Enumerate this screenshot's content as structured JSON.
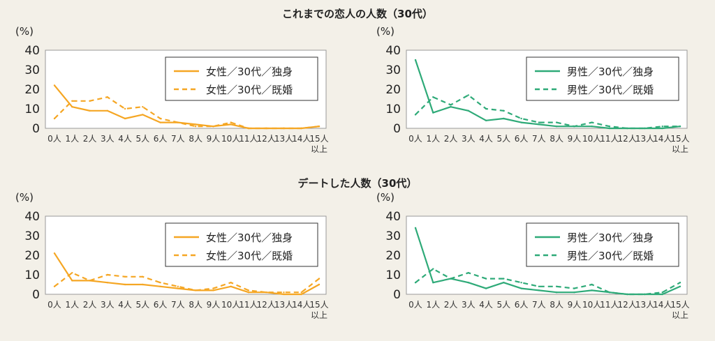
{
  "titles": {
    "top": "これまでの恋人の人数（30代）",
    "bottom": "デートした人数（30代）"
  },
  "chart_data": [
    {
      "type": "line",
      "section": "これまでの恋人の人数（30代）",
      "ylabel": "(%)",
      "ylim": [
        0,
        40
      ],
      "yticks": [
        0,
        10,
        20,
        30,
        40
      ],
      "categories": [
        "0人",
        "1人",
        "2人",
        "3人",
        "4人",
        "5人",
        "6人",
        "7人",
        "8人",
        "9人",
        "10人",
        "11人",
        "12人",
        "13人",
        "14人",
        "15人以上"
      ],
      "legend_position": "top-right",
      "series": [
        {
          "name": "女性／30代／独身",
          "color": "#f5a623",
          "dash": false,
          "values": [
            22,
            11,
            9,
            9,
            5,
            7,
            3,
            3,
            2,
            1,
            2,
            0,
            0,
            0,
            0,
            1
          ]
        },
        {
          "name": "女性／30代／既婚",
          "color": "#f5a623",
          "dash": true,
          "values": [
            5,
            14,
            14,
            16,
            10,
            11,
            5,
            3,
            1,
            1,
            3,
            0,
            0,
            0,
            0,
            1
          ]
        }
      ]
    },
    {
      "type": "line",
      "section": "これまでの恋人の人数（30代）",
      "ylabel": "(%)",
      "ylim": [
        0,
        40
      ],
      "yticks": [
        0,
        10,
        20,
        30,
        40
      ],
      "categories": [
        "0人",
        "1人",
        "2人",
        "3人",
        "4人",
        "5人",
        "6人",
        "7人",
        "8人",
        "9人",
        "10人",
        "11人",
        "12人",
        "13人",
        "14人",
        "15人以上"
      ],
      "legend_position": "top-right",
      "series": [
        {
          "name": "男性／30代／独身",
          "color": "#2eaa78",
          "dash": false,
          "values": [
            35,
            8,
            11,
            9,
            4,
            5,
            3,
            2,
            1,
            1,
            1,
            0,
            0,
            0,
            0,
            1
          ]
        },
        {
          "name": "男性／30代／既婚",
          "color": "#2eaa78",
          "dash": true,
          "values": [
            7,
            16,
            12,
            17,
            10,
            9,
            5,
            3,
            3,
            1,
            3,
            1,
            0,
            0,
            1,
            1
          ]
        }
      ]
    },
    {
      "type": "line",
      "section": "デートした人数（30代）",
      "ylabel": "(%)",
      "ylim": [
        0,
        40
      ],
      "yticks": [
        0,
        10,
        20,
        30,
        40
      ],
      "categories": [
        "0人",
        "1人",
        "2人",
        "3人",
        "4人",
        "5人",
        "6人",
        "7人",
        "8人",
        "9人",
        "10人",
        "11人",
        "12人",
        "13人",
        "14人",
        "15人以上"
      ],
      "legend_position": "top-right",
      "series": [
        {
          "name": "女性／30代／独身",
          "color": "#f5a623",
          "dash": false,
          "values": [
            21,
            7,
            7,
            6,
            5,
            5,
            4,
            3,
            2,
            2,
            4,
            1,
            1,
            0,
            0,
            5
          ]
        },
        {
          "name": "女性／30代／既婚",
          "color": "#f5a623",
          "dash": true,
          "values": [
            4,
            11,
            7,
            10,
            9,
            9,
            6,
            4,
            2,
            3,
            6,
            2,
            1,
            1,
            1,
            8
          ]
        }
      ]
    },
    {
      "type": "line",
      "section": "デートした人数（30代）",
      "ylabel": "(%)",
      "ylim": [
        0,
        40
      ],
      "yticks": [
        0,
        10,
        20,
        30,
        40
      ],
      "categories": [
        "0人",
        "1人",
        "2人",
        "3人",
        "4人",
        "5人",
        "6人",
        "7人",
        "8人",
        "9人",
        "10人",
        "11人",
        "12人",
        "13人",
        "14人",
        "15人以上"
      ],
      "legend_position": "top-right",
      "series": [
        {
          "name": "男性／30代／独身",
          "color": "#2eaa78",
          "dash": false,
          "values": [
            34,
            6,
            8,
            6,
            3,
            6,
            3,
            2,
            1,
            1,
            2,
            1,
            0,
            0,
            0,
            4
          ]
        },
        {
          "name": "男性／30代／既婚",
          "color": "#2eaa78",
          "dash": true,
          "values": [
            6,
            13,
            8,
            11,
            8,
            8,
            6,
            4,
            4,
            3,
            5,
            1,
            0,
            0,
            1,
            6
          ]
        }
      ]
    }
  ]
}
